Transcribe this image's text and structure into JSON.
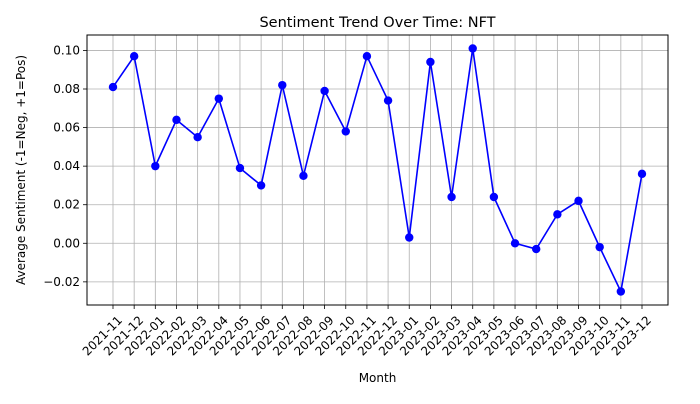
{
  "chart_data": {
    "type": "line",
    "title": "Sentiment Trend Over Time: NFT",
    "xlabel": "Month",
    "ylabel": "Average Sentiment (-1=Neg, +1=Pos)",
    "categories": [
      "2021-11",
      "2021-12",
      "2022-01",
      "2022-02",
      "2022-03",
      "2022-04",
      "2022-05",
      "2022-06",
      "2022-07",
      "2022-08",
      "2022-09",
      "2022-10",
      "2022-11",
      "2022-12",
      "2023-01",
      "2023-02",
      "2023-03",
      "2023-04",
      "2023-05",
      "2023-06",
      "2023-07",
      "2023-08",
      "2023-09",
      "2023-10",
      "2023-11",
      "2023-12"
    ],
    "series": [
      {
        "name": "",
        "color": "#0000ff",
        "marker": "circle",
        "values": [
          0.081,
          0.097,
          0.04,
          0.064,
          0.055,
          0.075,
          0.039,
          0.03,
          0.082,
          0.035,
          0.079,
          0.058,
          0.097,
          0.074,
          0.003,
          0.094,
          0.024,
          0.101,
          0.024,
          0.0,
          -0.003,
          0.015,
          0.022,
          -0.002,
          -0.025,
          0.036
        ]
      }
    ],
    "ylim": [
      -0.032,
      0.108
    ],
    "yticks": [
      -0.02,
      0.0,
      0.02,
      0.04,
      0.06,
      0.08,
      0.1
    ],
    "ytick_labels": [
      "−0.02",
      "0.00",
      "0.02",
      "0.04",
      "0.06",
      "0.08",
      "0.10"
    ],
    "grid": true,
    "legend": "none"
  }
}
